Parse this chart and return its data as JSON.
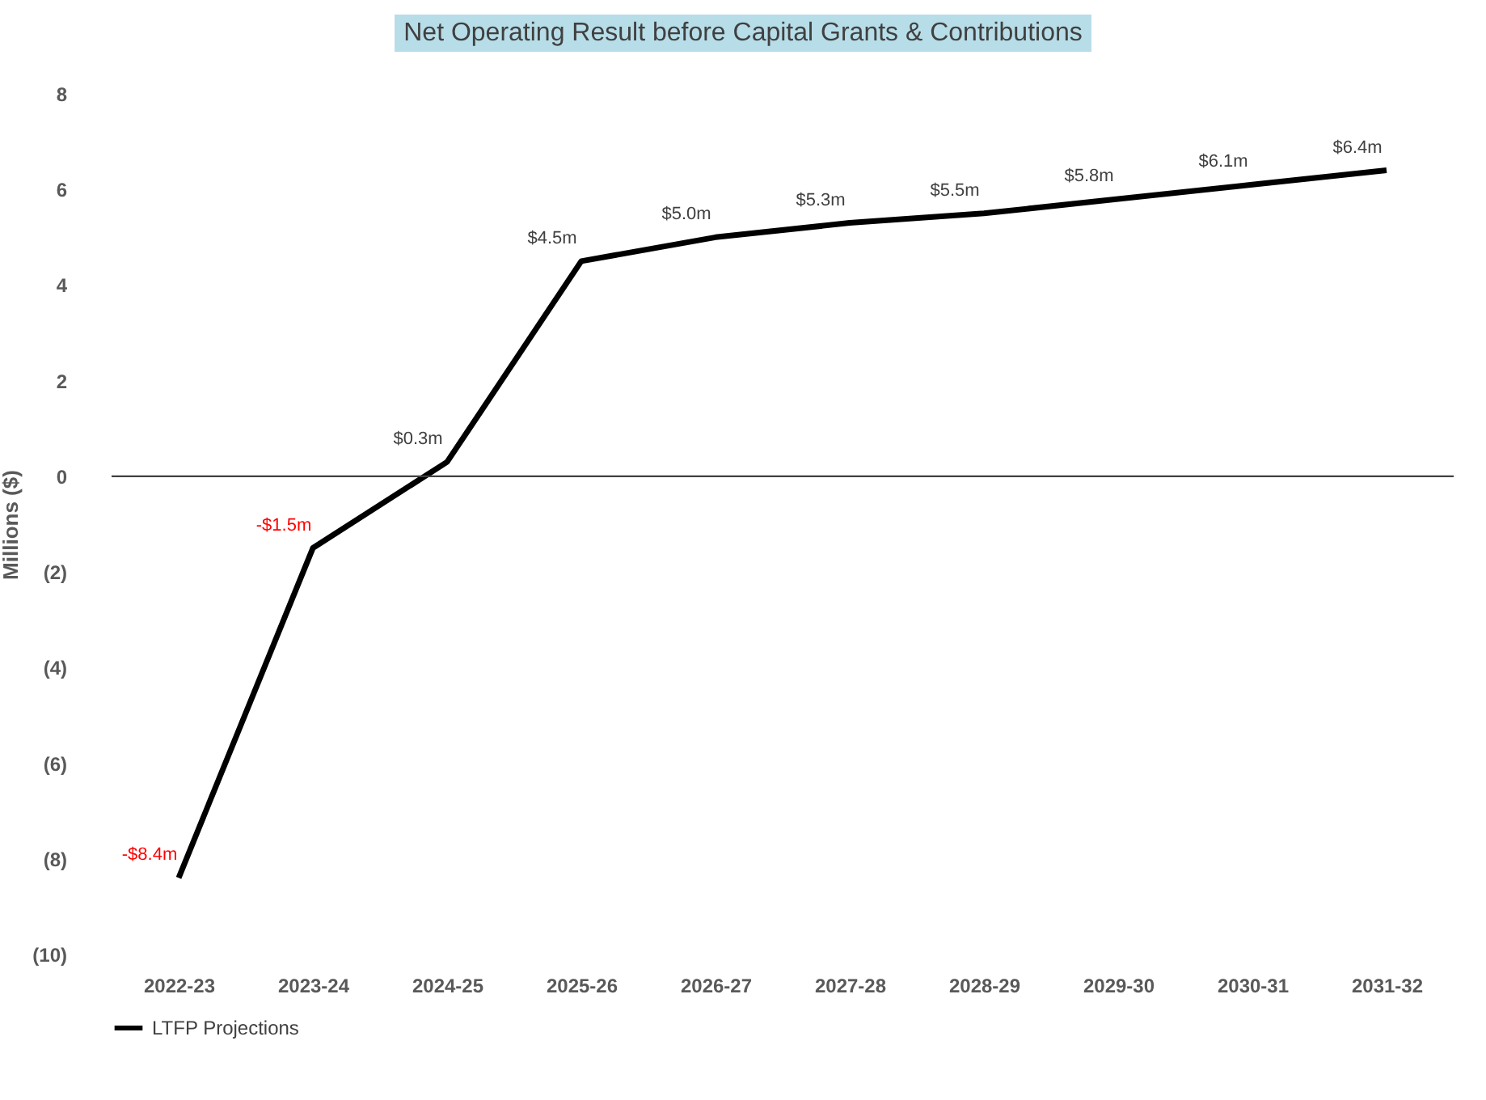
{
  "chart_data": {
    "type": "line",
    "title": "Net Operating Result before Capital Grants & Contributions",
    "ylabel": "Millions ($)",
    "categories": [
      "2022-23",
      "2023-24",
      "2024-25",
      "2025-26",
      "2026-27",
      "2027-28",
      "2028-29",
      "2029-30",
      "2030-31",
      "2031-32"
    ],
    "series": [
      {
        "name": "LTFP Projections",
        "color": "#000000",
        "values": [
          -8.4,
          -1.5,
          0.3,
          4.5,
          5.0,
          5.3,
          5.5,
          5.8,
          6.1,
          6.4
        ],
        "value_labels": [
          "-$8.4m",
          "-$1.5m",
          "$0.3m",
          "$4.5m",
          "$5.0m",
          "$5.3m",
          "$5.5m",
          "$5.8m",
          "$6.1m",
          "$6.4m"
        ]
      }
    ],
    "ylim": [
      -10,
      8
    ],
    "yticks": [
      8,
      6,
      4,
      2,
      0,
      {
        "value": -2,
        "label": "(2)"
      },
      {
        "value": -4,
        "label": "(4)"
      },
      {
        "value": -6,
        "label": "(6)"
      },
      {
        "value": -8,
        "label": "(8)"
      },
      {
        "value": -10,
        "label": "(10)"
      }
    ],
    "ref_lines": [
      {
        "axis": "y",
        "value": 0,
        "color": "#404040"
      }
    ],
    "legend": "bottom",
    "grid": false,
    "marker": "none",
    "line_style": "solid"
  }
}
